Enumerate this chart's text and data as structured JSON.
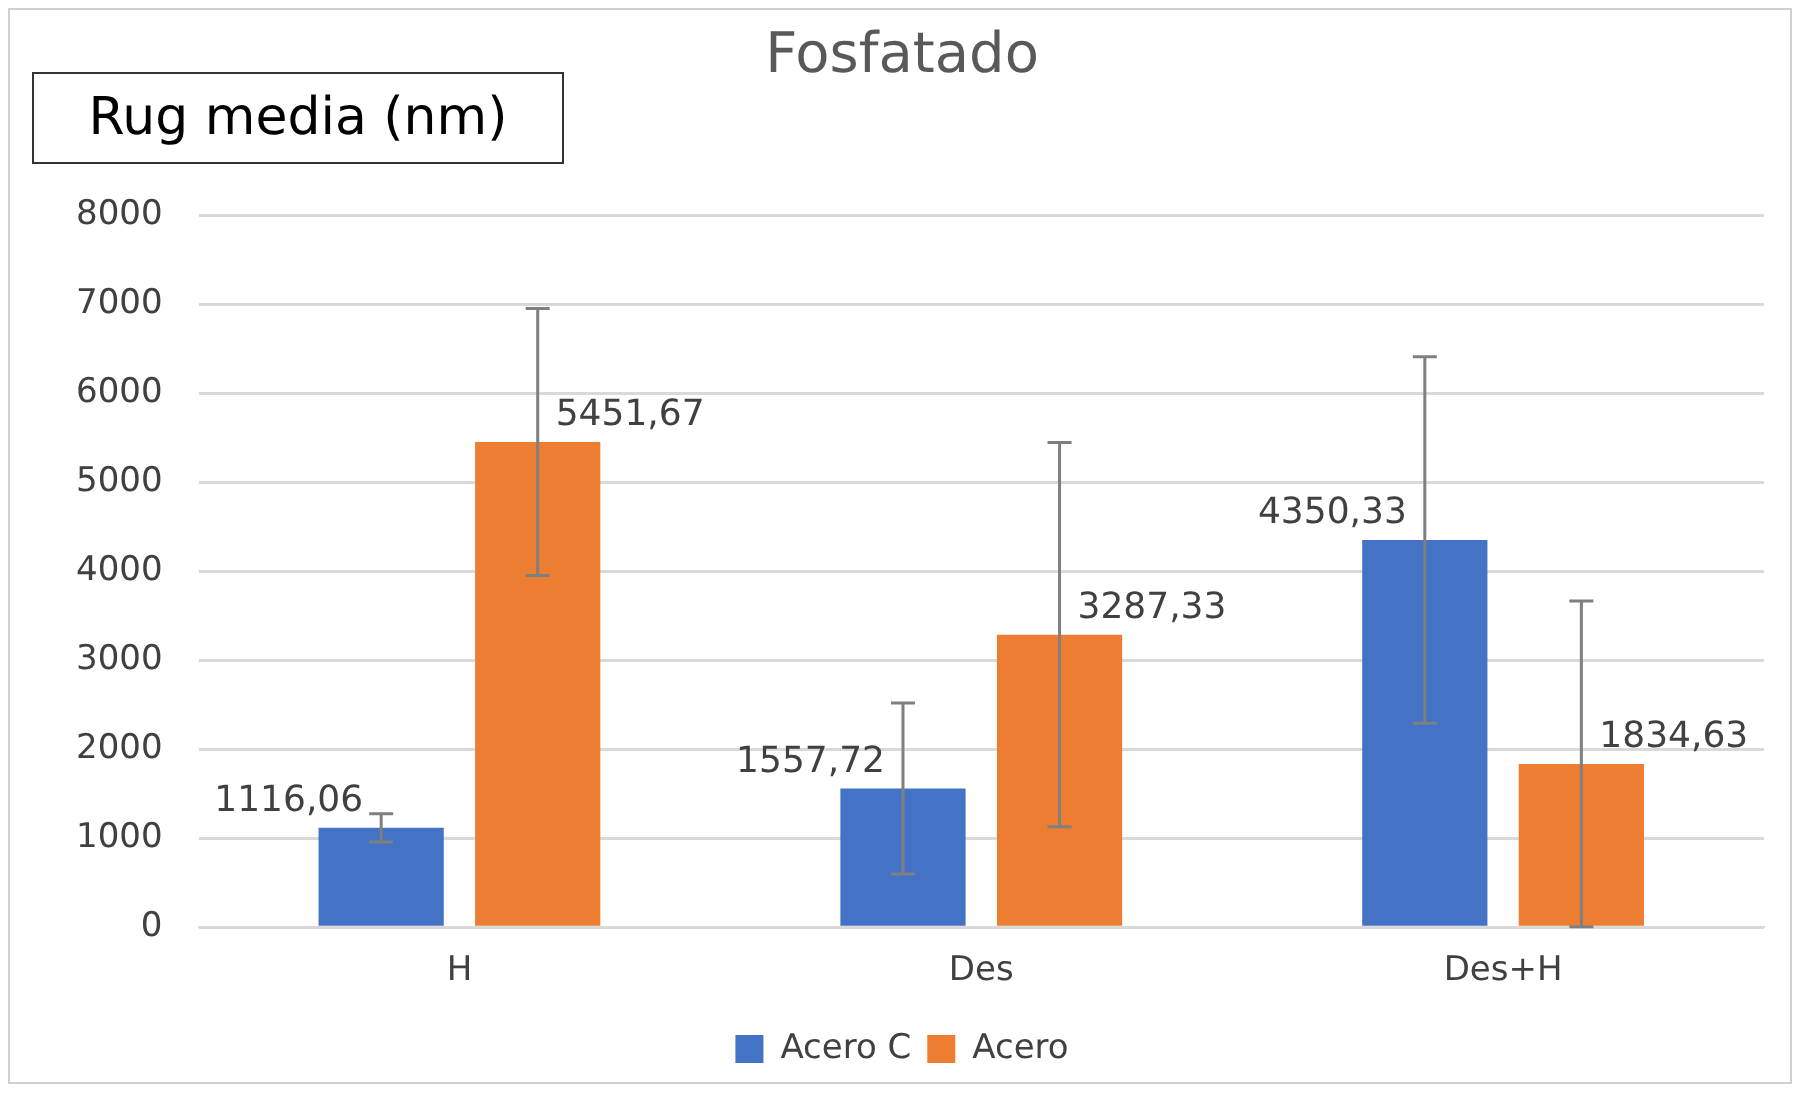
{
  "chart_data": {
    "type": "bar",
    "title": "Fosfatado",
    "ylabel": "Rug media (nm)",
    "categories": [
      "H",
      "Des",
      "Des+H"
    ],
    "series": [
      {
        "name": "Acero C",
        "color": "#4472c4",
        "values": [
          1116.06,
          1557.72,
          4350.33
        ],
        "errors": [
          160,
          960,
          2060
        ],
        "value_labels": [
          "1116,06",
          "1557,72",
          "4350,33"
        ]
      },
      {
        "name": "Acero",
        "color": "#ed7d31",
        "values": [
          5451.67,
          3287.33,
          1834.63
        ],
        "errors": [
          1500,
          2160,
          1830
        ],
        "value_labels": [
          "5451,67",
          "3287,33",
          "1834,63"
        ]
      }
    ],
    "ylim": [
      0,
      8000
    ],
    "yticks": [
      0,
      1000,
      2000,
      3000,
      4000,
      5000,
      6000,
      7000,
      8000
    ],
    "grid": "y",
    "legend": "bottom"
  }
}
